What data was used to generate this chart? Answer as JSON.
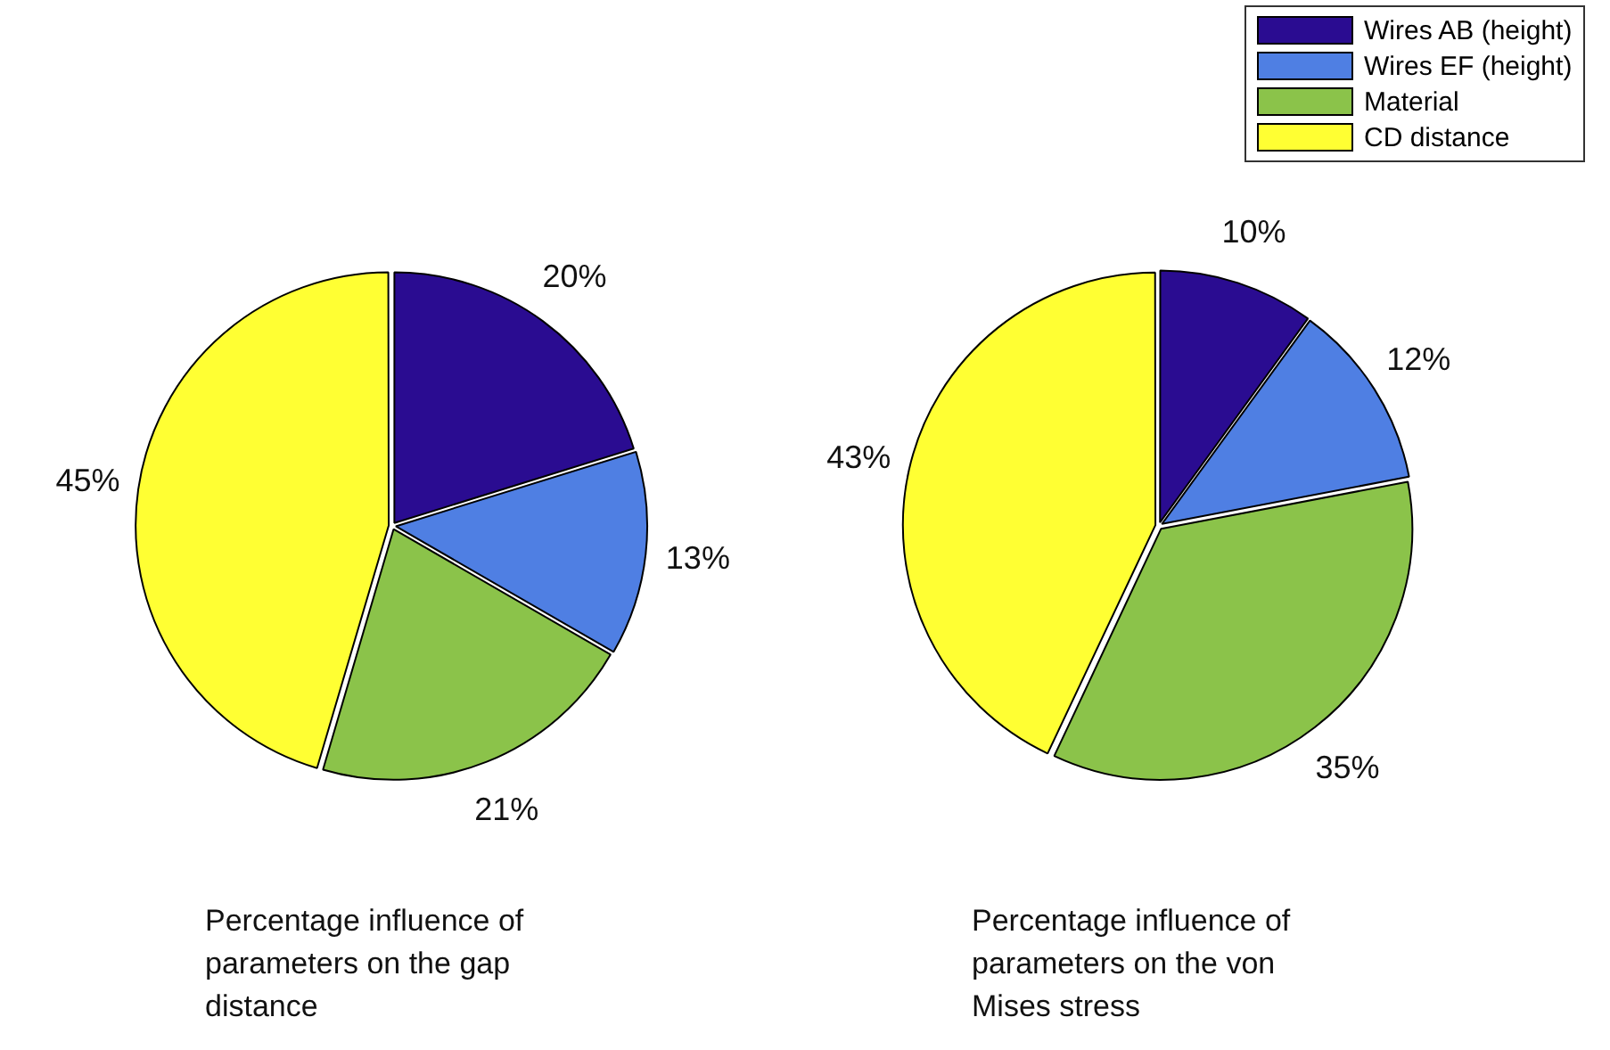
{
  "chart_data": [
    {
      "type": "pie",
      "title": "Percentage influence of parameters on the gap distance",
      "categories": [
        null,
        null,
        null,
        null
      ],
      "values": [
        20,
        13,
        21,
        45
      ],
      "colors": [
        "#2a0c91",
        "#4f7fe3",
        "#8bc34a",
        "#ffff33"
      ],
      "value_labels": [
        "20%",
        "13%",
        "21%",
        "45%"
      ]
    },
    {
      "type": "pie",
      "title": "Percentage influence of parameters on the von Mises stress",
      "categories": [
        "Wires AB (height)",
        "Wires EF (height)",
        "Material",
        "CD distance"
      ],
      "values": [
        10,
        12,
        35,
        43
      ],
      "colors": [
        "#2a0c91",
        "#4f7fe3",
        "#8bc34a",
        "#ffff33"
      ],
      "value_labels": [
        "10%",
        "12%",
        "35%",
        "43%"
      ],
      "legend": "top right"
    }
  ]
}
